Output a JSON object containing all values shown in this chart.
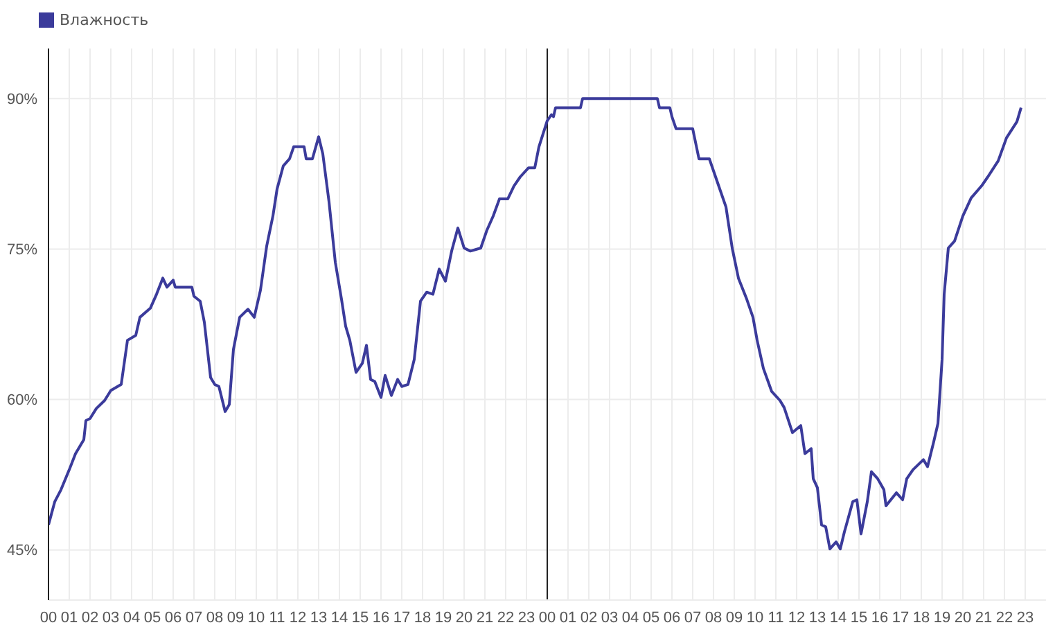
{
  "chart_data": {
    "type": "line",
    "x": [
      0,
      0.3,
      0.6,
      1.0,
      1.3,
      1.7,
      1.8,
      2.0,
      2.3,
      2.7,
      3.0,
      3.5,
      3.8,
      4.2,
      4.4,
      4.9,
      5.2,
      5.5,
      5.7,
      6.0,
      6.1,
      6.9,
      7.0,
      7.3,
      7.5,
      7.8,
      8.0,
      8.2,
      8.5,
      8.7,
      8.9,
      9.2,
      9.6,
      9.9,
      10.2,
      10.5,
      10.8,
      11.0,
      11.3,
      11.6,
      11.8,
      12.3,
      12.4,
      12.7,
      13.0,
      13.2,
      13.5,
      13.8,
      14.1,
      14.3,
      14.5,
      14.8,
      15.1,
      15.3,
      15.5,
      15.7,
      16.0,
      16.2,
      16.5,
      16.8,
      17.0,
      17.3,
      17.6,
      17.9,
      18.2,
      18.5,
      18.8,
      19.1,
      19.4,
      19.7,
      20.0,
      20.3,
      20.8,
      21.1,
      21.4,
      21.7,
      22.1,
      22.4,
      22.7,
      23.1,
      23.4,
      23.6,
      24.0,
      24.2,
      24.3,
      24.4,
      25.6,
      25.7,
      29.3,
      29.4,
      29.9,
      30.0,
      30.2,
      31.0,
      31.3,
      31.8,
      32.1,
      32.6,
      32.9,
      33.2,
      33.6,
      33.9,
      34.1,
      34.4,
      34.8,
      35.2,
      35.4,
      35.8,
      36.2,
      36.4,
      36.7,
      36.8,
      37.0,
      37.2,
      37.4,
      37.6,
      37.9,
      38.1,
      38.3,
      38.7,
      38.9,
      39.1,
      39.4,
      39.6,
      39.9,
      40.2,
      40.3,
      40.8,
      41.1,
      41.3,
      41.6,
      42.1,
      42.3,
      42.6,
      42.8,
      42.9,
      43.0,
      43.1,
      43.3,
      43.6,
      44.0,
      44.4,
      44.9,
      45.2,
      45.7,
      46.1,
      46.6,
      46.8
    ],
    "series": [
      {
        "name": "Влажность",
        "color": "#3b3b9b",
        "values": [
          47.5,
          49.8,
          51,
          53,
          54.6,
          56,
          57.9,
          58.1,
          59.1,
          59.9,
          60.9,
          61.5,
          65.9,
          66.4,
          68.2,
          69.1,
          70.5,
          72.1,
          71.2,
          71.9,
          71.2,
          71.2,
          70.3,
          69.8,
          67.7,
          62.2,
          61.5,
          61.3,
          58.8,
          59.5,
          65,
          68.2,
          69,
          68.2,
          70.9,
          75.3,
          78.3,
          81,
          83.3,
          84,
          85.2,
          85.2,
          84,
          84,
          86.2,
          84.5,
          79.7,
          73.7,
          70,
          67.3,
          65.9,
          62.7,
          63.6,
          65.4,
          62,
          61.8,
          60.2,
          62.4,
          60.4,
          62,
          61.3,
          61.5,
          64,
          69.8,
          70.7,
          70.5,
          73,
          71.8,
          74.8,
          77.1,
          75.1,
          74.8,
          75.1,
          76.9,
          78.3,
          80,
          80,
          81.3,
          82.2,
          83.1,
          83.1,
          85.2,
          87.8,
          88.4,
          88.2,
          89.1,
          89.1,
          90,
          90,
          89.1,
          89.1,
          88.2,
          87,
          87,
          84,
          84,
          82.2,
          79.2,
          75.1,
          72.1,
          70,
          68.2,
          65.9,
          63.1,
          60.8,
          59.9,
          59.2,
          56.7,
          57.4,
          54.6,
          55.1,
          52.1,
          51.2,
          47.5,
          47.3,
          45.1,
          45.8,
          45.1,
          46.8,
          49.8,
          50,
          46.6,
          49.8,
          52.8,
          52.1,
          51,
          49.4,
          50.7,
          50,
          52.1,
          53,
          54,
          53.3,
          55.8,
          57.6,
          60.8,
          64,
          70.5,
          75.1,
          75.8,
          78.3,
          80.1,
          81.3,
          82.2,
          83.8,
          86.1,
          87.7,
          89.1
        ]
      }
    ],
    "xlim": [
      0,
      48
    ],
    "xticks": [
      {
        "value": 0,
        "label": "00"
      },
      {
        "value": 1,
        "label": "01"
      },
      {
        "value": 2,
        "label": "02"
      },
      {
        "value": 3,
        "label": "03"
      },
      {
        "value": 4,
        "label": "04"
      },
      {
        "value": 5,
        "label": "05"
      },
      {
        "value": 6,
        "label": "06"
      },
      {
        "value": 7,
        "label": "07"
      },
      {
        "value": 8,
        "label": "08"
      },
      {
        "value": 9,
        "label": "09"
      },
      {
        "value": 10,
        "label": "10"
      },
      {
        "value": 11,
        "label": "11"
      },
      {
        "value": 12,
        "label": "12"
      },
      {
        "value": 13,
        "label": "13"
      },
      {
        "value": 14,
        "label": "14"
      },
      {
        "value": 15,
        "label": "15"
      },
      {
        "value": 16,
        "label": "16"
      },
      {
        "value": 17,
        "label": "17"
      },
      {
        "value": 18,
        "label": "18"
      },
      {
        "value": 19,
        "label": "19"
      },
      {
        "value": 20,
        "label": "20"
      },
      {
        "value": 21,
        "label": "21"
      },
      {
        "value": 22,
        "label": "22"
      },
      {
        "value": 23,
        "label": "23"
      },
      {
        "value": 24,
        "label": "00"
      },
      {
        "value": 25,
        "label": "01"
      },
      {
        "value": 26,
        "label": "02"
      },
      {
        "value": 27,
        "label": "03"
      },
      {
        "value": 28,
        "label": "04"
      },
      {
        "value": 29,
        "label": "05"
      },
      {
        "value": 30,
        "label": "06"
      },
      {
        "value": 31,
        "label": "07"
      },
      {
        "value": 32,
        "label": "08"
      },
      {
        "value": 33,
        "label": "09"
      },
      {
        "value": 34,
        "label": "10"
      },
      {
        "value": 35,
        "label": "11"
      },
      {
        "value": 36,
        "label": "12"
      },
      {
        "value": 37,
        "label": "13"
      },
      {
        "value": 38,
        "label": "14"
      },
      {
        "value": 39,
        "label": "15"
      },
      {
        "value": 40,
        "label": "16"
      },
      {
        "value": 41,
        "label": "17"
      },
      {
        "value": 42,
        "label": "18"
      },
      {
        "value": 43,
        "label": "19"
      },
      {
        "value": 44,
        "label": "20"
      },
      {
        "value": 45,
        "label": "21"
      },
      {
        "value": 46,
        "label": "22"
      },
      {
        "value": 47,
        "label": "23"
      }
    ],
    "ylim": [
      40,
      95
    ],
    "yticks": [
      {
        "value": 45,
        "label": "45%"
      },
      {
        "value": 60,
        "label": "60%"
      },
      {
        "value": 75,
        "label": "75%"
      },
      {
        "value": 90,
        "label": "90%"
      }
    ],
    "ref_lines": [
      {
        "axis": "x",
        "value": 24,
        "color": "#222222"
      }
    ],
    "grid": true,
    "legend": "top left",
    "marker": "none",
    "line_style": "solid"
  }
}
